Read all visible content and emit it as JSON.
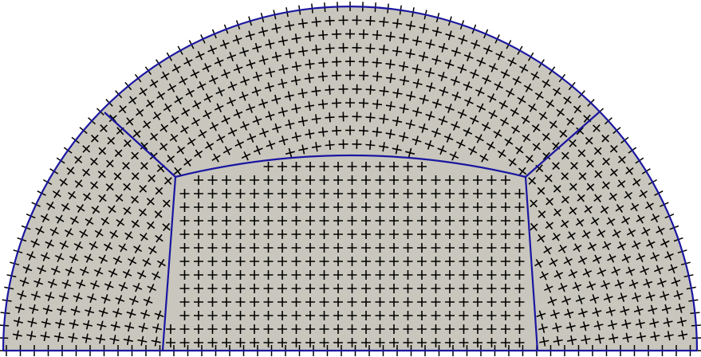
{
  "diagram": {
    "kind": "structured-quad-mesh",
    "shape": "half-disk",
    "blocks": [
      "center-block",
      "left-wedge",
      "top-arc",
      "right-wedge"
    ],
    "marker_symbol": "+",
    "colors": {
      "background": "#ffffff",
      "fill": "#c9c7bd",
      "block_edge": "#1a16a0",
      "marker": "#000000"
    }
  }
}
